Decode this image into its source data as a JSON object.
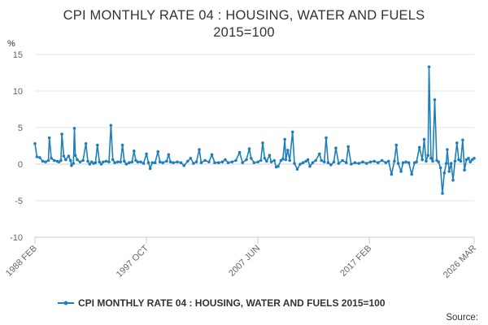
{
  "chart_data": {
    "type": "line",
    "title_lines": [
      "CPI MONTHLY RATE 04 : HOUSING, WATER AND FUELS",
      "2015=100"
    ],
    "ylabel": "%",
    "ylim": [
      -10,
      15
    ],
    "yticks": [
      -10,
      -5,
      0,
      5,
      10,
      15
    ],
    "ytick_labels": [
      "-10",
      "-5",
      "0",
      "5",
      "10",
      "15"
    ],
    "xlim": [
      1988.083,
      2026.167
    ],
    "xticks": [
      {
        "label": "1988 FEB",
        "t": 1988.083
      },
      {
        "label": "1997 OCT",
        "t": 1997.75
      },
      {
        "label": "2007 JUN",
        "t": 2007.417
      },
      {
        "label": "2017 FEB",
        "t": 2017.083
      },
      {
        "label": "2026 MAR",
        "t": 2026.167
      }
    ],
    "grid": true,
    "legend_position": "bottom",
    "series": [
      {
        "name": "CPI MONTHLY RATE 04 : HOUSING, WATER AND FUELS 2015=100",
        "color": "#1f7fb8",
        "points": [
          [
            1988.08,
            2.8
          ],
          [
            1988.25,
            1.0
          ],
          [
            1988.5,
            0.9
          ],
          [
            1988.75,
            0.4
          ],
          [
            1989.0,
            0.3
          ],
          [
            1989.25,
            0.5
          ],
          [
            1989.33,
            3.6
          ],
          [
            1989.5,
            0.8
          ],
          [
            1989.75,
            0.5
          ],
          [
            1990.0,
            0.4
          ],
          [
            1990.17,
            0.3
          ],
          [
            1990.33,
            0.5
          ],
          [
            1990.42,
            4.1
          ],
          [
            1990.58,
            1.1
          ],
          [
            1990.75,
            0.6
          ],
          [
            1991.0,
            1.1
          ],
          [
            1991.17,
            0.5
          ],
          [
            1991.25,
            -0.2
          ],
          [
            1991.42,
            0.1
          ],
          [
            1991.5,
            4.9
          ],
          [
            1991.58,
            1.2
          ],
          [
            1991.75,
            0.6
          ],
          [
            1992.0,
            0.3
          ],
          [
            1992.25,
            0.5
          ],
          [
            1992.5,
            2.8
          ],
          [
            1992.67,
            0.4
          ],
          [
            1992.83,
            0.0
          ],
          [
            1993.0,
            0.3
          ],
          [
            1993.17,
            0.1
          ],
          [
            1993.33,
            0.2
          ],
          [
            1993.5,
            2.6
          ],
          [
            1993.67,
            0.3
          ],
          [
            1993.83,
            0.0
          ],
          [
            1994.0,
            0.3
          ],
          [
            1994.25,
            0.4
          ],
          [
            1994.5,
            0.3
          ],
          [
            1994.67,
            5.3
          ],
          [
            1994.83,
            0.6
          ],
          [
            1995.0,
            0.2
          ],
          [
            1995.25,
            0.3
          ],
          [
            1995.5,
            0.3
          ],
          [
            1995.67,
            2.6
          ],
          [
            1995.83,
            0.4
          ],
          [
            1996.0,
            0.0
          ],
          [
            1996.25,
            0.2
          ],
          [
            1996.5,
            0.3
          ],
          [
            1996.67,
            1.8
          ],
          [
            1996.83,
            0.5
          ],
          [
            1997.0,
            0.3
          ],
          [
            1997.25,
            0.3
          ],
          [
            1997.5,
            0.1
          ],
          [
            1997.75,
            1.4
          ],
          [
            1997.92,
            0.2
          ],
          [
            1998.08,
            -0.6
          ],
          [
            1998.25,
            0.2
          ],
          [
            1998.5,
            0.2
          ],
          [
            1998.75,
            1.7
          ],
          [
            1998.92,
            0.3
          ],
          [
            1999.17,
            0.2
          ],
          [
            1999.5,
            0.4
          ],
          [
            1999.67,
            1.3
          ],
          [
            1999.83,
            0.3
          ],
          [
            2000.08,
            0.2
          ],
          [
            2000.42,
            0.3
          ],
          [
            2000.75,
            0.2
          ],
          [
            2001.0,
            -0.2
          ],
          [
            2001.33,
            0.4
          ],
          [
            2001.58,
            0.8
          ],
          [
            2001.83,
            0.1
          ],
          [
            2002.08,
            0.3
          ],
          [
            2002.33,
            2.0
          ],
          [
            2002.5,
            0.2
          ],
          [
            2002.83,
            0.5
          ],
          [
            2003.17,
            0.3
          ],
          [
            2003.42,
            1.3
          ],
          [
            2003.67,
            0.2
          ],
          [
            2004.0,
            0.2
          ],
          [
            2004.33,
            0.3
          ],
          [
            2004.58,
            0.6
          ],
          [
            2004.83,
            0.2
          ],
          [
            2005.17,
            0.3
          ],
          [
            2005.5,
            0.5
          ],
          [
            2005.83,
            1.6
          ],
          [
            2006.08,
            0.2
          ],
          [
            2006.42,
            0.6
          ],
          [
            2006.67,
            2.1
          ],
          [
            2006.83,
            0.8
          ],
          [
            2007.08,
            0.2
          ],
          [
            2007.42,
            0.3
          ],
          [
            2007.67,
            0.5
          ],
          [
            2007.83,
            2.9
          ],
          [
            2008.0,
            0.8
          ],
          [
            2008.17,
            0.4
          ],
          [
            2008.42,
            1.2
          ],
          [
            2008.58,
            0.3
          ],
          [
            2008.83,
            0.5
          ],
          [
            2009.0,
            -0.4
          ],
          [
            2009.17,
            -0.3
          ],
          [
            2009.42,
            0.5
          ],
          [
            2009.58,
            0.7
          ],
          [
            2009.75,
            3.4
          ],
          [
            2009.83,
            0.6
          ],
          [
            2010.0,
            1.9
          ],
          [
            2010.17,
            0.5
          ],
          [
            2010.42,
            4.4
          ],
          [
            2010.58,
            0.1
          ],
          [
            2010.83,
            -0.7
          ],
          [
            2011.08,
            0.0
          ],
          [
            2011.33,
            0.2
          ],
          [
            2011.58,
            0.4
          ],
          [
            2011.75,
            0.6
          ],
          [
            2011.92,
            -0.3
          ],
          [
            2012.17,
            0.2
          ],
          [
            2012.42,
            0.5
          ],
          [
            2012.75,
            1.4
          ],
          [
            2012.92,
            0.5
          ],
          [
            2013.17,
            0.3
          ],
          [
            2013.33,
            3.6
          ],
          [
            2013.5,
            0.2
          ],
          [
            2013.75,
            -0.1
          ],
          [
            2014.0,
            0.3
          ],
          [
            2014.17,
            2.2
          ],
          [
            2014.42,
            0.1
          ],
          [
            2014.75,
            0.5
          ],
          [
            2015.08,
            0.2
          ],
          [
            2015.25,
            2.4
          ],
          [
            2015.5,
            0.0
          ],
          [
            2015.83,
            0.2
          ],
          [
            2016.17,
            0.1
          ],
          [
            2016.5,
            0.3
          ],
          [
            2016.83,
            0.1
          ],
          [
            2017.17,
            0.3
          ],
          [
            2017.5,
            0.4
          ],
          [
            2017.83,
            0.2
          ],
          [
            2018.17,
            0.5
          ],
          [
            2018.5,
            0.2
          ],
          [
            2018.75,
            0.4
          ],
          [
            2019.0,
            -1.4
          ],
          [
            2019.25,
            0.4
          ],
          [
            2019.42,
            2.6
          ],
          [
            2019.58,
            0.1
          ],
          [
            2019.83,
            -1.0
          ],
          [
            2020.0,
            0.2
          ],
          [
            2020.25,
            0.3
          ],
          [
            2020.5,
            0.2
          ],
          [
            2020.75,
            -1.4
          ],
          [
            2021.0,
            0.2
          ],
          [
            2021.17,
            0.3
          ],
          [
            2021.42,
            2.3
          ],
          [
            2021.67,
            0.6
          ],
          [
            2021.83,
            3.4
          ],
          [
            2022.0,
            0.4
          ],
          [
            2022.17,
            1.2
          ],
          [
            2022.25,
            13.3
          ],
          [
            2022.42,
            0.8
          ],
          [
            2022.58,
            0.4
          ],
          [
            2022.75,
            8.8
          ],
          [
            2022.92,
            0.5
          ],
          [
            2023.08,
            0.3
          ],
          [
            2023.25,
            -0.5
          ],
          [
            2023.42,
            -4.0
          ],
          [
            2023.58,
            -1.2
          ],
          [
            2023.75,
            0.1
          ],
          [
            2023.83,
            2.0
          ],
          [
            2024.0,
            -1.0
          ],
          [
            2024.17,
            0.1
          ],
          [
            2024.33,
            -2.2
          ],
          [
            2024.5,
            0.4
          ],
          [
            2024.67,
            2.9
          ],
          [
            2024.83,
            0.6
          ],
          [
            2025.0,
            0.4
          ],
          [
            2025.17,
            3.3
          ],
          [
            2025.33,
            -0.8
          ],
          [
            2025.5,
            0.6
          ],
          [
            2025.67,
            0.8
          ],
          [
            2025.83,
            0.3
          ],
          [
            2026.0,
            0.6
          ],
          [
            2026.17,
            0.8
          ]
        ]
      }
    ],
    "source_label": "Source:"
  }
}
